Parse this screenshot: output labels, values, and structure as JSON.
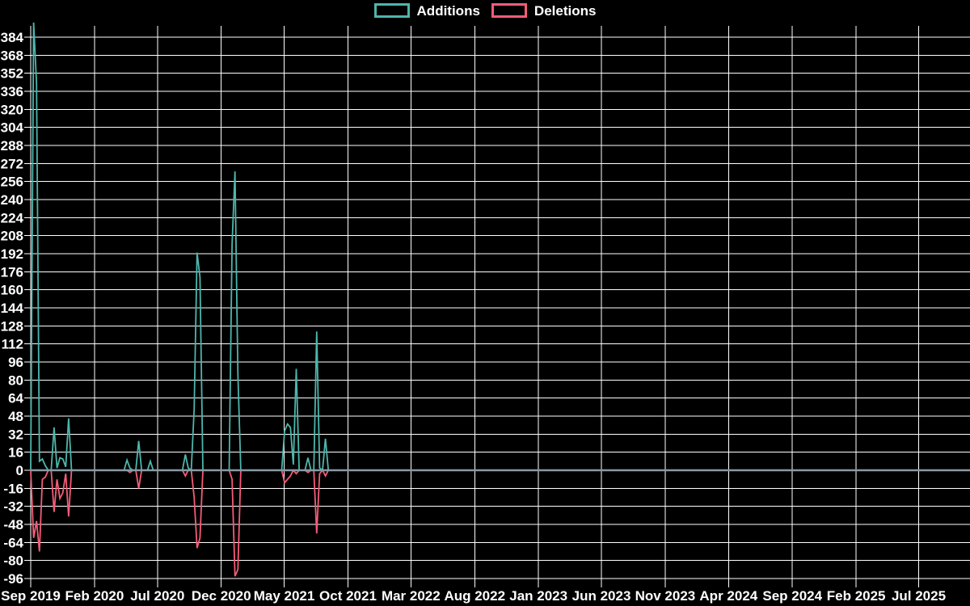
{
  "chart_data": {
    "type": "line",
    "title": "",
    "legend": [
      {
        "label": "Additions",
        "color": "#4db6ac"
      },
      {
        "label": "Deletions",
        "color": "#f55c78"
      }
    ],
    "background": "#000000",
    "grid_color": "#ffffff",
    "zero_line_color": "#8b99a5",
    "text_color": "#ffffff",
    "grid": true,
    "legend_position": "top-center",
    "ylim": [
      -96,
      384
    ],
    "y_tick_step": 16,
    "y_ticks": [
      384,
      368,
      352,
      336,
      320,
      304,
      288,
      272,
      256,
      240,
      224,
      208,
      192,
      176,
      160,
      144,
      128,
      112,
      96,
      80,
      64,
      48,
      32,
      16,
      0,
      -16,
      -32,
      -48,
      -64,
      -80,
      -96
    ],
    "x_ticks": [
      {
        "label": "Sep 2019",
        "date": "2019-09-01"
      },
      {
        "label": "Feb 2020",
        "date": "2020-02-01"
      },
      {
        "label": "Jul 2020",
        "date": "2020-07-01"
      },
      {
        "label": "Dec 2020",
        "date": "2020-12-01"
      },
      {
        "label": "May 2021",
        "date": "2021-05-01"
      },
      {
        "label": "Oct 2021",
        "date": "2021-10-01"
      },
      {
        "label": "Mar 2022",
        "date": "2022-03-01"
      },
      {
        "label": "Aug 2022",
        "date": "2022-08-01"
      },
      {
        "label": "Jan 2023",
        "date": "2023-01-01"
      },
      {
        "label": "Jun 2023",
        "date": "2023-06-01"
      },
      {
        "label": "Nov 2023",
        "date": "2023-11-01"
      },
      {
        "label": "Apr 2024",
        "date": "2024-04-01"
      },
      {
        "label": "Sep 2024",
        "date": "2024-09-01"
      },
      {
        "label": "Feb 2025",
        "date": "2025-02-01"
      },
      {
        "label": "Jul 2025",
        "date": "2025-07-01"
      }
    ],
    "series_start": "2019-09-01",
    "series_end": "2025-11-16",
    "week_step_days": 7,
    "points_format": [
      "week_start_date",
      "additions",
      "deletions"
    ],
    "points": [
      [
        "2019-09-08",
        397,
        -60
      ],
      [
        "2019-09-15",
        343,
        -45
      ],
      [
        "2019-09-22",
        8,
        -72
      ],
      [
        "2019-09-29",
        10,
        -8
      ],
      [
        "2019-10-06",
        4,
        -6
      ],
      [
        "2019-10-27",
        38,
        -37
      ],
      [
        "2019-11-03",
        2,
        -8
      ],
      [
        "2019-11-10",
        11,
        -25
      ],
      [
        "2019-11-17",
        10,
        -20
      ],
      [
        "2019-11-24",
        3,
        -3
      ],
      [
        "2019-12-01",
        46,
        -41
      ],
      [
        "2020-04-19",
        9,
        0
      ],
      [
        "2020-04-26",
        2,
        -2
      ],
      [
        "2020-05-17",
        26,
        -16
      ],
      [
        "2020-06-14",
        8,
        0
      ],
      [
        "2020-09-06",
        14,
        -5
      ],
      [
        "2020-09-13",
        2,
        0
      ],
      [
        "2020-09-27",
        54,
        -24
      ],
      [
        "2020-10-04",
        193,
        -69
      ],
      [
        "2020-10-11",
        171,
        -60
      ],
      [
        "2020-12-27",
        200,
        -8
      ],
      [
        "2021-01-03",
        265,
        -94
      ],
      [
        "2021-01-10",
        85,
        -88
      ],
      [
        "2021-05-02",
        35,
        -11
      ],
      [
        "2021-05-09",
        41,
        -8
      ],
      [
        "2021-05-16",
        38,
        -5
      ],
      [
        "2021-05-23",
        5,
        0
      ],
      [
        "2021-05-30",
        90,
        -3
      ],
      [
        "2021-06-27",
        11,
        -2
      ],
      [
        "2021-07-18",
        123,
        -56
      ],
      [
        "2021-07-25",
        2,
        -3
      ],
      [
        "2021-08-08",
        28,
        -5
      ]
    ]
  }
}
